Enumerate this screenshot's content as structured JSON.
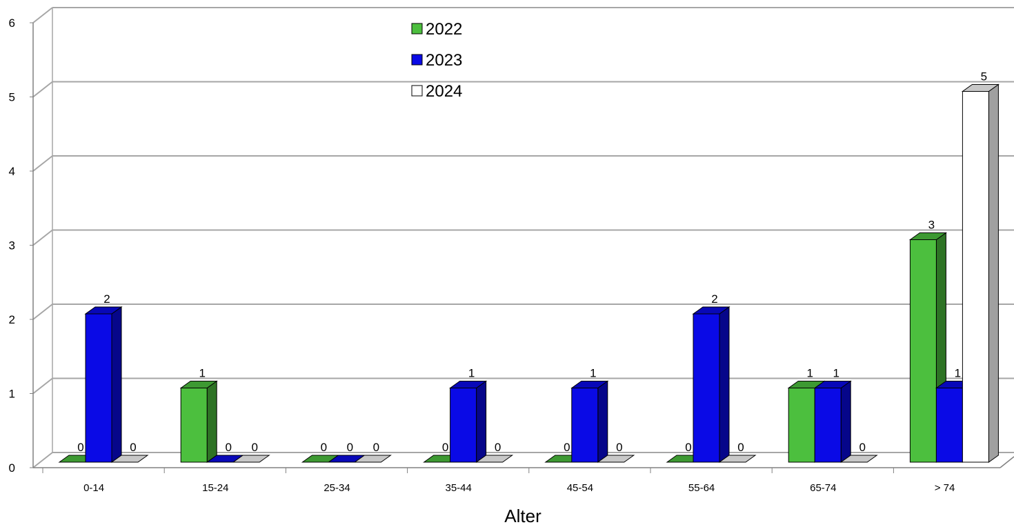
{
  "chart_data": {
    "type": "bar",
    "title": "",
    "xlabel": "Alter",
    "ylabel": "",
    "ylim": [
      0,
      6
    ],
    "yticks": [
      0,
      1,
      2,
      3,
      4,
      5,
      6
    ],
    "grid": true,
    "legend_position": "top-center",
    "categories": [
      "0-14",
      "15-24",
      "25-34",
      "35-44",
      "45-54",
      "55-64",
      "65-74",
      "> 74"
    ],
    "series": [
      {
        "name": "2022",
        "color": "#4cbf3e",
        "values": [
          0,
          1,
          0,
          0,
          0,
          0,
          1,
          3
        ]
      },
      {
        "name": "2023",
        "color": "#0a0ae6",
        "values": [
          2,
          0,
          0,
          1,
          1,
          2,
          1,
          1
        ]
      },
      {
        "name": "2024",
        "color": "#ffffff",
        "values": [
          0,
          0,
          0,
          0,
          0,
          0,
          0,
          5
        ]
      }
    ]
  }
}
